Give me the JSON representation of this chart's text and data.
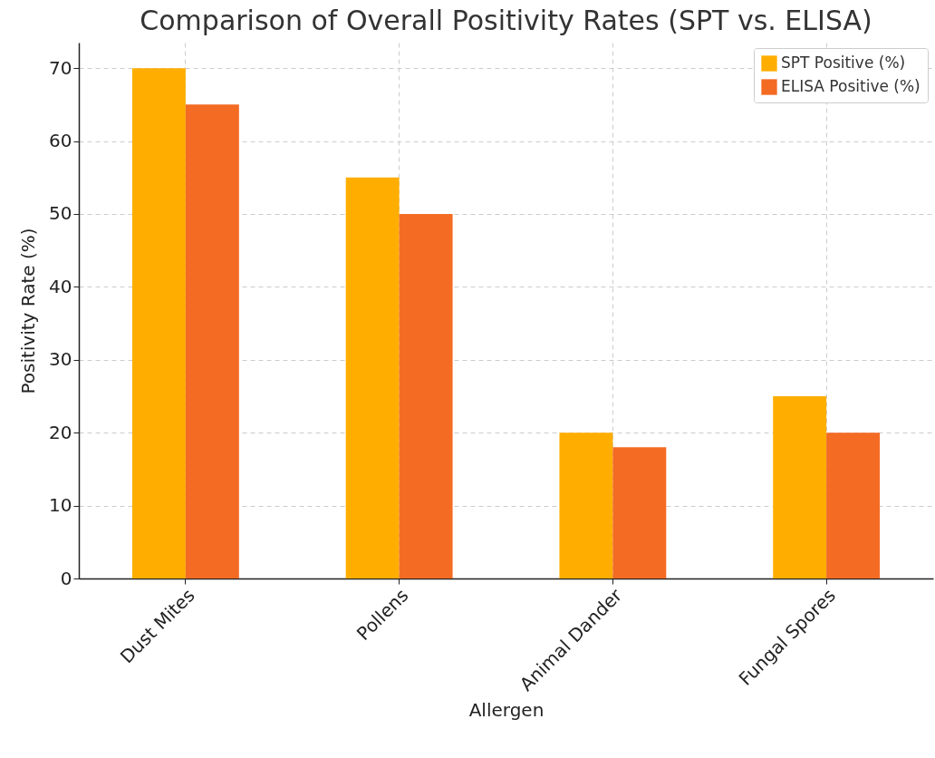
{
  "chart_data": {
    "type": "bar",
    "title": "Comparison of Overall Positivity Rates (SPT vs. ELISA)",
    "xlabel": "Allergen",
    "ylabel": "Positivity Rate (%)",
    "categories": [
      "Dust Mites",
      "Pollens",
      "Animal Dander",
      "Fungal Spores"
    ],
    "series": [
      {
        "name": "SPT Positive (%)",
        "color": "#ffae00",
        "values": [
          70,
          55,
          20,
          25
        ]
      },
      {
        "name": "ELISA Positive (%)",
        "color": "#f46b23",
        "values": [
          65,
          50,
          18,
          20
        ]
      }
    ],
    "ylim": [
      0,
      73.5
    ],
    "yticks": [
      0,
      10,
      20,
      30,
      40,
      50,
      60,
      70
    ],
    "grid": true,
    "legend": "top right"
  }
}
